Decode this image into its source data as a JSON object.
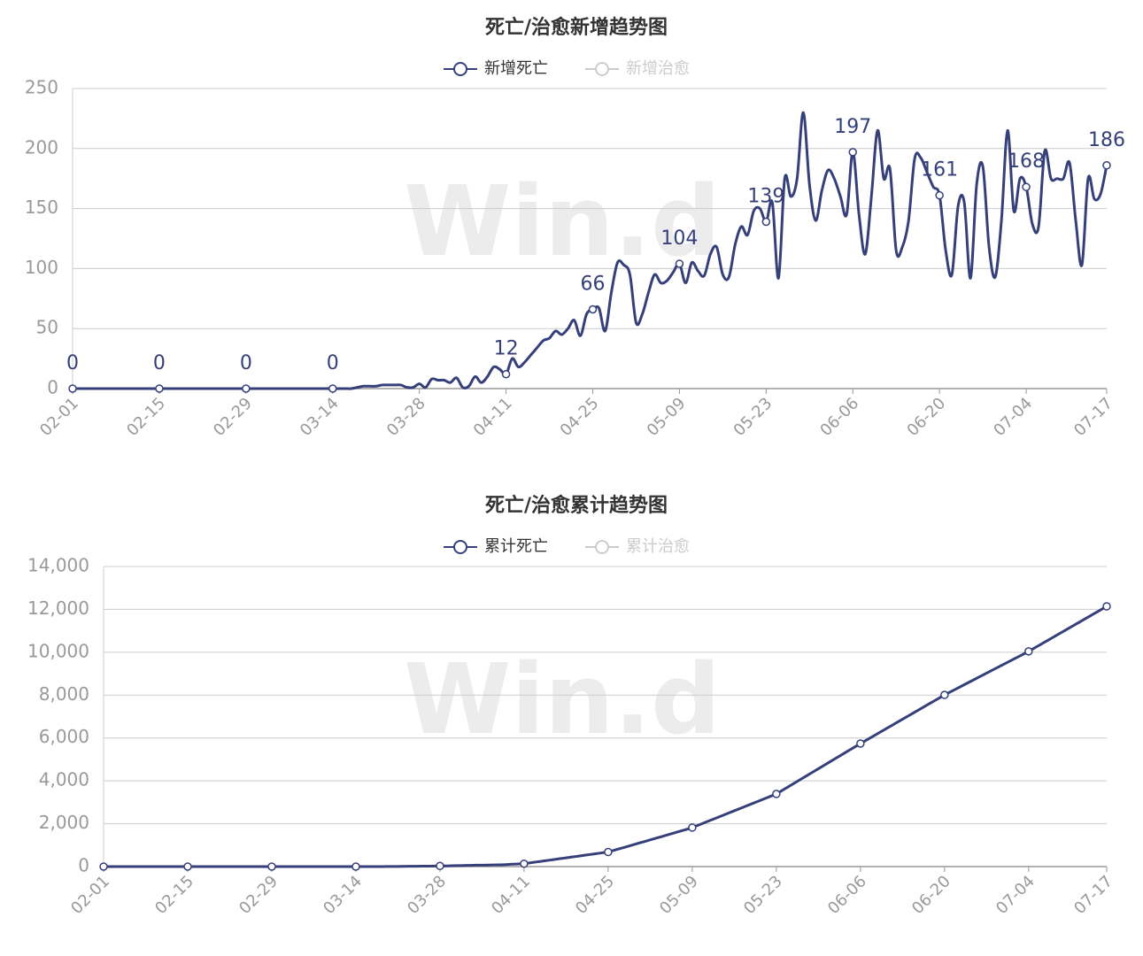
{
  "chart_data": [
    {
      "type": "line",
      "title": "死亡/治愈新增趋势图",
      "watermark": "Win.d",
      "categories": [
        "02-01",
        null,
        null,
        null,
        null,
        null,
        null,
        null,
        null,
        null,
        null,
        null,
        null,
        null,
        "02-15",
        null,
        null,
        null,
        null,
        null,
        null,
        null,
        null,
        null,
        null,
        null,
        null,
        null,
        "02-29",
        null,
        null,
        null,
        null,
        null,
        null,
        null,
        null,
        null,
        null,
        null,
        null,
        null,
        "03-14",
        null,
        null,
        null,
        null,
        null,
        null,
        null,
        null,
        null,
        null,
        null,
        null,
        null,
        "03-28",
        null,
        null,
        null,
        null,
        null,
        null,
        null,
        null,
        null,
        null,
        null,
        null,
        null,
        "04-11",
        null,
        null,
        null,
        null,
        null,
        null,
        null,
        null,
        null,
        null,
        null,
        null,
        null,
        "04-25",
        null,
        null,
        null,
        null,
        null,
        null,
        null,
        null,
        null,
        null,
        null,
        null,
        null,
        "05-09",
        null,
        null,
        null,
        null,
        null,
        null,
        null,
        null,
        null,
        null,
        null,
        null,
        null,
        "05-23",
        null,
        null,
        null,
        null,
        null,
        null,
        null,
        null,
        null,
        null,
        null,
        null,
        null,
        "06-06",
        null,
        null,
        null,
        null,
        null,
        null,
        null,
        null,
        null,
        null,
        null,
        null,
        null,
        "06-20",
        null,
        null,
        null,
        null,
        null,
        null,
        null,
        null,
        null,
        null,
        null,
        null,
        null,
        "07-04",
        null,
        null,
        null,
        null,
        null,
        null,
        null,
        null,
        null,
        null,
        null,
        null,
        "07-17"
      ],
      "series": [
        {
          "name": "新增死亡",
          "color": "#35407a",
          "values": [
            0,
            0,
            0,
            0,
            0,
            0,
            0,
            0,
            0,
            0,
            0,
            0,
            0,
            0,
            0,
            0,
            0,
            0,
            0,
            0,
            0,
            0,
            0,
            0,
            0,
            0,
            0,
            0,
            0,
            0,
            0,
            0,
            0,
            0,
            0,
            0,
            0,
            0,
            0,
            0,
            0,
            0,
            0,
            0,
            0,
            0,
            1,
            2,
            2,
            2,
            3,
            3,
            3,
            3,
            1,
            1,
            4,
            1,
            8,
            7,
            7,
            5,
            9,
            1,
            2,
            10,
            5,
            10,
            18,
            16,
            12,
            25,
            18,
            22,
            28,
            34,
            40,
            42,
            48,
            45,
            50,
            57,
            44,
            62,
            66,
            67,
            48,
            80,
            105,
            103,
            95,
            55,
            62,
            80,
            95,
            88,
            90,
            97,
            104,
            88,
            105,
            98,
            94,
            112,
            118,
            95,
            93,
            120,
            135,
            128,
            148,
            150,
            139,
            155,
            92,
            175,
            160,
            175,
            230,
            170,
            140,
            165,
            182,
            175,
            160,
            145,
            197,
            145,
            112,
            160,
            215,
            175,
            183,
            115,
            118,
            140,
            192,
            192,
            180,
            168,
            161,
            115,
            95,
            152,
            155,
            92,
            170,
            185,
            118,
            93,
            140,
            215,
            148,
            175,
            168,
            137,
            135,
            198,
            175,
            175,
            175,
            188,
            140,
            103,
            175,
            158,
            162,
            186
          ]
        },
        {
          "name": "新增治愈",
          "color": "#cccccc",
          "hidden": true
        }
      ],
      "marked_points": [
        0,
        14,
        28,
        42,
        70,
        84,
        98,
        112,
        126,
        140,
        154,
        167
      ],
      "show_labels": true,
      "ylim": [
        0,
        250
      ],
      "yticks": [
        0,
        50,
        100,
        150,
        200,
        250
      ],
      "grid": true
    },
    {
      "type": "line",
      "title": "死亡/治愈累计趋势图",
      "watermark": "Win.d",
      "categories": [
        "02-01",
        null,
        null,
        null,
        null,
        null,
        null,
        null,
        null,
        null,
        null,
        null,
        null,
        null,
        "02-15",
        null,
        null,
        null,
        null,
        null,
        null,
        null,
        null,
        null,
        null,
        null,
        null,
        null,
        "02-29",
        null,
        null,
        null,
        null,
        null,
        null,
        null,
        null,
        null,
        null,
        null,
        null,
        null,
        "03-14",
        null,
        null,
        null,
        null,
        null,
        null,
        null,
        null,
        null,
        null,
        null,
        null,
        null,
        "03-28",
        null,
        null,
        null,
        null,
        null,
        null,
        null,
        null,
        null,
        null,
        null,
        null,
        null,
        "04-11",
        null,
        null,
        null,
        null,
        null,
        null,
        null,
        null,
        null,
        null,
        null,
        null,
        null,
        "04-25",
        null,
        null,
        null,
        null,
        null,
        null,
        null,
        null,
        null,
        null,
        null,
        null,
        null,
        "05-09",
        null,
        null,
        null,
        null,
        null,
        null,
        null,
        null,
        null,
        null,
        null,
        null,
        null,
        "05-23",
        null,
        null,
        null,
        null,
        null,
        null,
        null,
        null,
        null,
        null,
        null,
        null,
        null,
        "06-06",
        null,
        null,
        null,
        null,
        null,
        null,
        null,
        null,
        null,
        null,
        null,
        null,
        null,
        "06-20",
        null,
        null,
        null,
        null,
        null,
        null,
        null,
        null,
        null,
        null,
        null,
        null,
        null,
        "07-04",
        null,
        null,
        null,
        null,
        null,
        null,
        null,
        null,
        null,
        null,
        null,
        null,
        "07-17"
      ],
      "series": [
        {
          "name": "累计死亡",
          "color": "#35407a",
          "values": [
            0,
            0,
            0,
            0,
            0,
            0,
            0,
            0,
            0,
            0,
            0,
            0,
            0,
            0,
            0,
            0,
            0,
            0,
            0,
            0,
            0,
            0,
            0,
            0,
            0,
            0,
            0,
            0,
            0,
            0,
            0,
            0,
            0,
            0,
            0,
            0,
            0,
            0,
            0,
            0,
            0,
            0,
            0,
            0,
            0,
            0,
            1,
            3,
            5,
            7,
            10,
            13,
            16,
            19,
            22,
            25,
            30,
            31,
            39,
            46,
            53,
            58,
            67,
            68,
            70,
            80,
            85,
            95,
            113,
            124,
            136,
            175,
            214,
            253,
            292,
            331,
            370,
            409,
            448,
            487,
            526,
            565,
            604,
            643,
            680,
            761,
            842,
            923,
            1004,
            1085,
            1166,
            1247,
            1328,
            1409,
            1490,
            1571,
            1652,
            1733,
            1820,
            1932,
            2044,
            2156,
            2268,
            2380,
            2492,
            2604,
            2716,
            2828,
            2940,
            3052,
            3164,
            3276,
            3390,
            3558,
            3726,
            3894,
            4062,
            4230,
            4398,
            4566,
            4734,
            4902,
            5070,
            5238,
            5406,
            5574,
            5740,
            5902,
            6064,
            6226,
            6388,
            6550,
            6712,
            6874,
            7036,
            7198,
            7360,
            7522,
            7684,
            7846,
            8010,
            8155,
            8300,
            8445,
            8590,
            8735,
            8880,
            9025,
            9170,
            9315,
            9460,
            9605,
            9750,
            9895,
            10040,
            10202,
            10363,
            10525,
            10686,
            10848,
            11009,
            11171,
            11332,
            11494,
            11655,
            11817,
            11978,
            12140
          ]
        },
        {
          "name": "累计治愈",
          "color": "#cccccc",
          "hidden": true
        }
      ],
      "marked_points": [
        0,
        14,
        28,
        42,
        56,
        70,
        84,
        98,
        112,
        126,
        140,
        154,
        167
      ],
      "show_labels": false,
      "ylim": [
        0,
        14000
      ],
      "yticks": [
        0,
        {
          "value": 2000,
          "label": "2,000"
        },
        {
          "value": 4000,
          "label": "4,000"
        },
        {
          "value": 6000,
          "label": "6,000"
        },
        {
          "value": 8000,
          "label": "8,000"
        },
        {
          "value": 10000,
          "label": "10,000"
        },
        {
          "value": 12000,
          "label": "12,000"
        },
        {
          "value": 14000,
          "label": "14,000"
        }
      ],
      "grid": true
    }
  ]
}
